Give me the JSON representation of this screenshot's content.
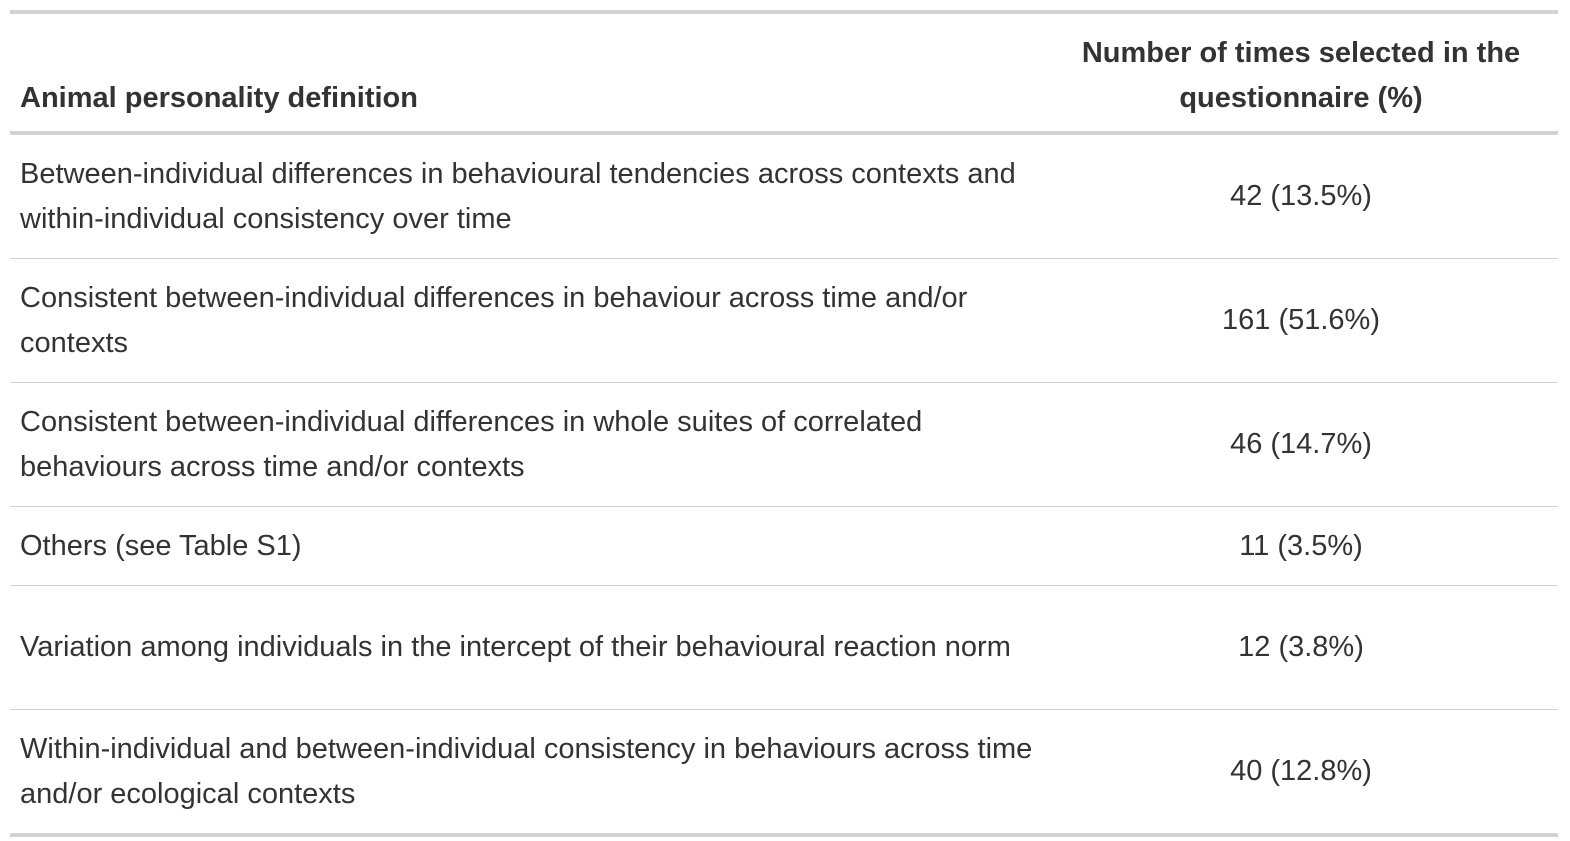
{
  "table": {
    "headers": {
      "definition": "Animal personality definition",
      "count": "Number of times selected in the questionnaire (%)"
    },
    "rows": [
      {
        "definition": "Between-individual differences in behavioural tendencies across contexts and within-individual consistency over time",
        "count": "42 (13.5%)"
      },
      {
        "definition": "Consistent between-individual differences in behaviour across time and/or contexts",
        "count": "161 (51.6%)"
      },
      {
        "definition": "Consistent between-individual differences in whole suites of correlated behaviours across time and/or contexts",
        "count": "46 (14.7%)"
      },
      {
        "definition": "Others (see Table S1)",
        "count": "11 (3.5%)"
      },
      {
        "definition": "Variation among individuals in the intercept of their behavioural reaction norm",
        "count": "12 (3.8%)"
      },
      {
        "definition": "Within-individual and between-individual consistency in behaviours across time and/or ecological contexts",
        "count": "40 (12.8%)"
      }
    ]
  }
}
